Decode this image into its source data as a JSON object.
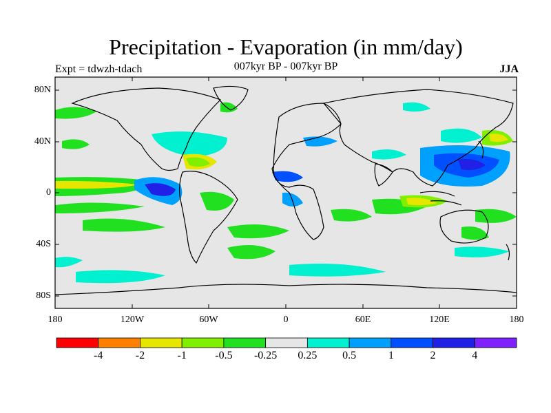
{
  "title": "Precipitation - Evaporation (in mm/day)",
  "expt_label": "Expt = tdwzh-tdach",
  "period_label": "007kyr BP - 007kyr BP",
  "season_label": "JJA",
  "lat_ticks": [
    "80N",
    "40N",
    "0",
    "40S",
    "80S"
  ],
  "lon_ticks": [
    "180",
    "120W",
    "60W",
    "0",
    "60E",
    "120E",
    "180"
  ],
  "legend": {
    "colors": [
      "#ff0000",
      "#ff7f00",
      "#e6e600",
      "#80f000",
      "#20e020",
      "#e6e6e6",
      "#00f0d0",
      "#00a0ff",
      "#0050ff",
      "#2020e6",
      "#7f20ff"
    ],
    "labels": [
      "-4",
      "-2",
      "-1",
      "-0.5",
      "-0.25",
      "0.25",
      "0.5",
      "1",
      "2",
      "4"
    ]
  },
  "colors": {
    "background": "#e6e6e6",
    "coast": "#000000"
  }
}
